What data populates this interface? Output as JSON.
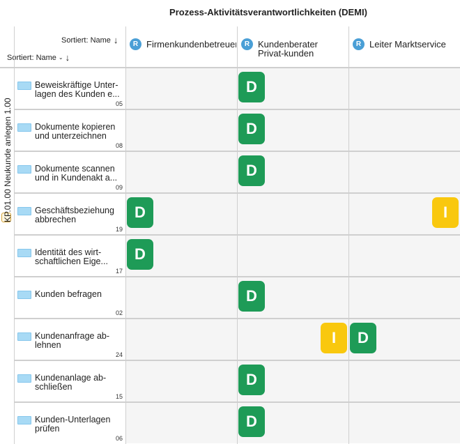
{
  "title": "Prozess-Aktivitätsverantwortlichkeiten (DEMI)",
  "sort_columns": {
    "label": "Sortiert: Name",
    "arrow": "↓"
  },
  "sort_rows": {
    "label": "Sortiert: Name",
    "caret": "⌄",
    "arrow": "↓"
  },
  "group_label": "KP.01.00 Neukunde anlegen 1.00",
  "role_badge": "R",
  "columns": [
    {
      "label": "Firmenkundenbetreuer"
    },
    {
      "label": "Kundenberater Privat-kunden"
    },
    {
      "label": "Leiter Marktservice"
    }
  ],
  "colors": {
    "D": "#1e9b57",
    "I": "#f9c80e",
    "role": "#4a9fd6",
    "process_icon": "#a8daf5"
  },
  "rows": [
    {
      "label": "Beweiskräftige Unter-lagen des Kunden e...",
      "number": "05",
      "cells": [
        "",
        "D",
        ""
      ]
    },
    {
      "label": "Dokumente kopieren und unterzeichnen",
      "number": "08",
      "cells": [
        "",
        "D",
        ""
      ]
    },
    {
      "label": "Dokumente scannen und in Kundenakt a...",
      "number": "09",
      "cells": [
        "",
        "D",
        ""
      ]
    },
    {
      "label": "Geschäftsbeziehung abbrechen",
      "number": "19",
      "cells": [
        "D",
        "",
        "I"
      ]
    },
    {
      "label": "Identität des wirt-schaftlichen Eige...",
      "number": "17",
      "cells": [
        "D",
        "",
        ""
      ]
    },
    {
      "label": "Kunden befragen",
      "number": "02",
      "cells": [
        "",
        "D",
        ""
      ]
    },
    {
      "label": "Kundenanfrage ab-lehnen",
      "number": "24",
      "cells": [
        "",
        "I",
        "D"
      ]
    },
    {
      "label": "Kundenanlage ab-schließen",
      "number": "15",
      "cells": [
        "",
        "D",
        ""
      ]
    },
    {
      "label": "Kunden-Unterlagen prüfen",
      "number": "06",
      "cells": [
        "",
        "D",
        ""
      ]
    }
  ]
}
